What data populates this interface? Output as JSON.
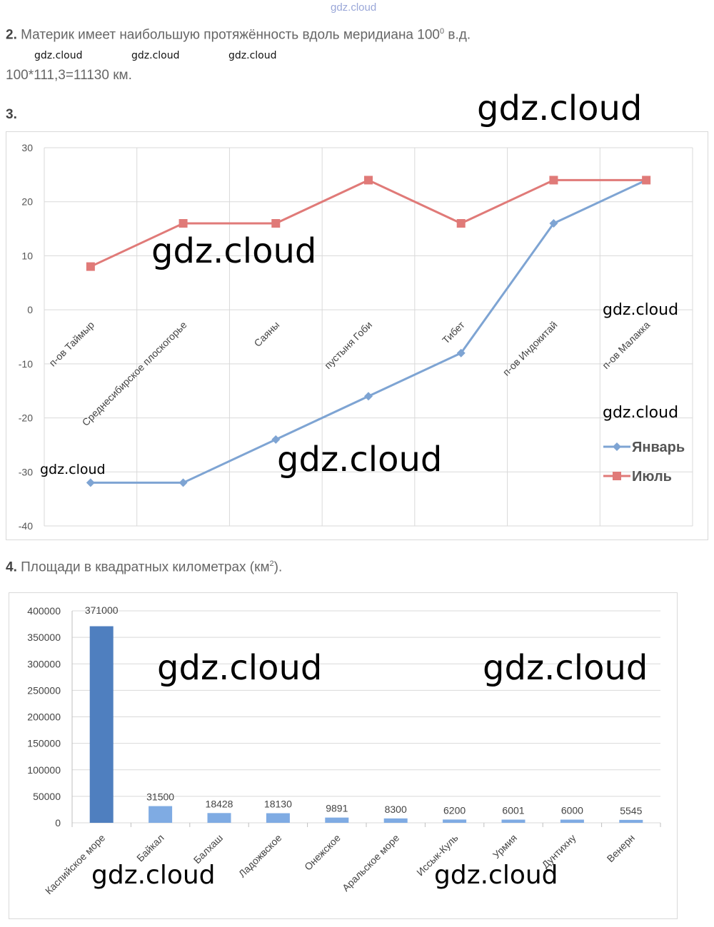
{
  "watermark_top": "gdz.cloud",
  "watermark": "gdz.cloud",
  "task2": {
    "num": "2.",
    "text_before": " Материк имеет наибольшую протяжённость вдоль меридиана 100",
    "sup": "0",
    "text_after": " в.д.",
    "calc": "100*111,3=11130 км."
  },
  "task3": {
    "num": "3."
  },
  "task4": {
    "num": "4.",
    "text": " Площади в квадратных километрах (км",
    "sup": "2",
    "text_after": ")."
  },
  "colors": {
    "january": "#7ea4d3",
    "july": "#e07a78",
    "bar": "#7fabe3",
    "bar_dark": "#4f7fbf"
  },
  "chart_data": [
    {
      "type": "line",
      "categories": [
        "п-ов Таймыр",
        "Среднесибирское плоскогорье",
        "Саяны",
        "пустыня Гоби",
        "Тибет",
        "п-ов Индокитай",
        "п-ов Малакка"
      ],
      "series": [
        {
          "name": "Январь",
          "values": [
            -32,
            -32,
            -24,
            -16,
            -8,
            16,
            24
          ]
        },
        {
          "name": "Июль",
          "values": [
            8,
            16,
            16,
            24,
            16,
            24,
            24
          ]
        }
      ],
      "yticks": [
        "30",
        "20",
        "10",
        "0",
        "-10",
        "-20",
        "-30",
        "-40"
      ],
      "ylim": [
        -40,
        30
      ],
      "legend": "right",
      "grid": true
    },
    {
      "type": "bar",
      "categories": [
        "Каспийское море",
        "Байкал",
        "Балхаш",
        "Ладожвское",
        "Онежское",
        "Аральское море",
        "Иссык-Куль",
        "Урмия",
        "Дунтихну",
        "Венерн"
      ],
      "values": [
        371000,
        31500,
        18428,
        18130,
        9891,
        8300,
        6200,
        6001,
        6000,
        5545
      ],
      "value_labels": [
        "371000",
        "31500",
        "18428",
        "18130",
        "9891",
        "8300",
        "6200",
        "6001",
        "6000",
        "5545"
      ],
      "yticks": [
        "400000",
        "350000",
        "300000",
        "250000",
        "200000",
        "150000",
        "100000",
        "50000",
        "0"
      ],
      "ylim": [
        0,
        400000
      ],
      "grid": true
    }
  ]
}
